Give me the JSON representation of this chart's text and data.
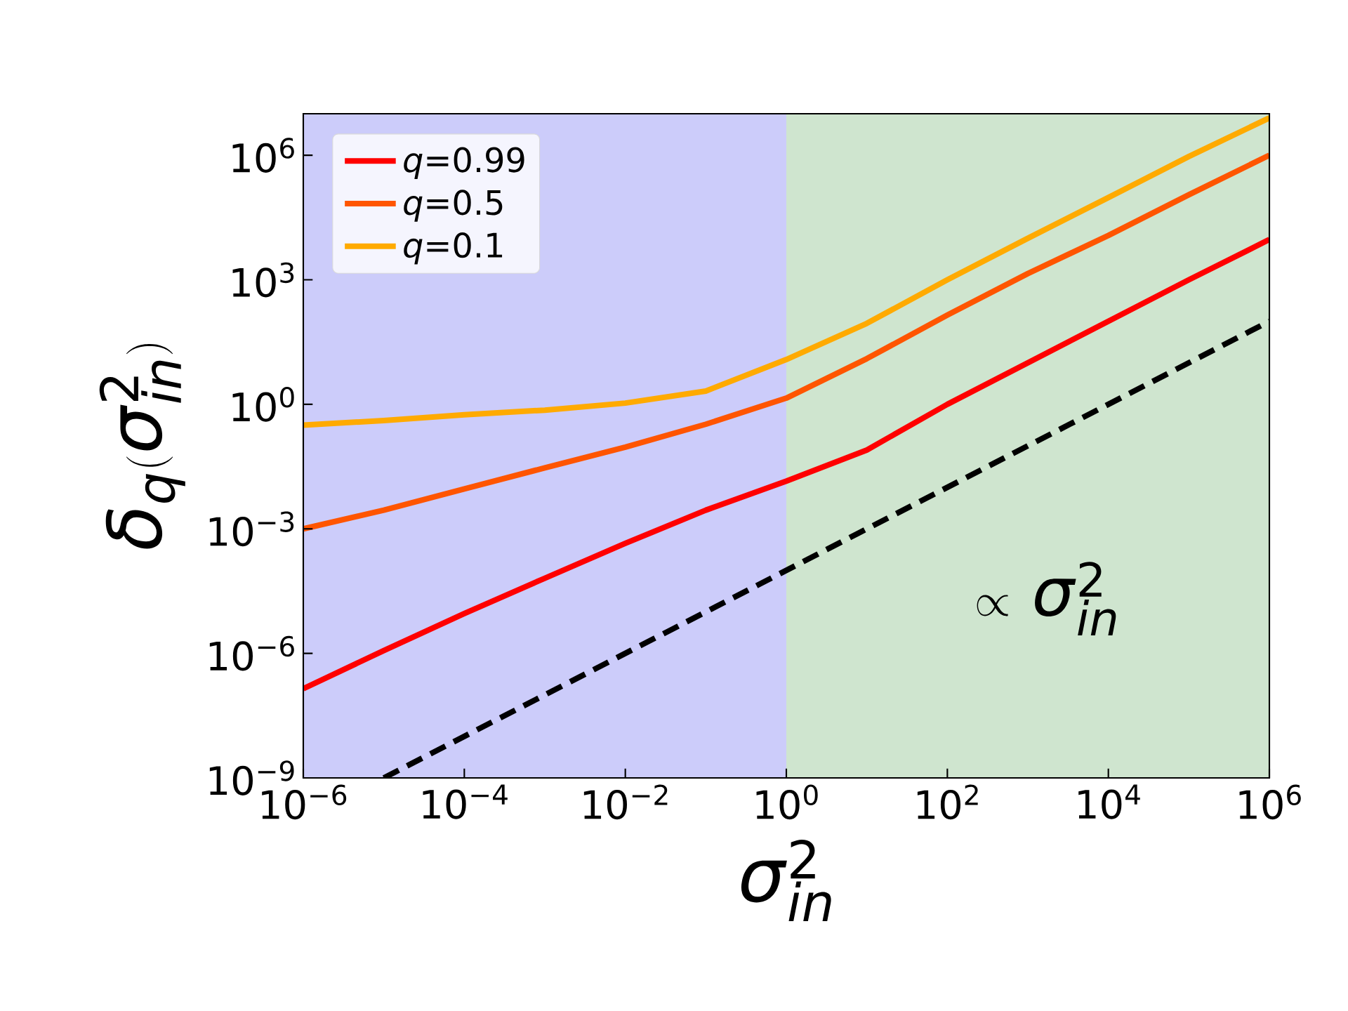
{
  "chart_data": {
    "type": "line",
    "xlabel": "\\sigma_{in}^{2}",
    "ylabel": "\\delta_{q}(\\sigma_{in}^{2})",
    "annotations": [
      "\\propto\\,\\sigma_{in}^{2}"
    ],
    "log": "xy",
    "legend": "top left",
    "xlim": [
      1e-06,
      1000000.0
    ],
    "ylim": [
      1e-09,
      10000000.0
    ],
    "xticks": [
      {
        "value": 1e-06,
        "label": "10$^{−6}$"
      },
      {
        "value": 0.0001,
        "label": "10$^{−4}$"
      },
      {
        "value": 0.01,
        "label": "10$^{−2}$"
      },
      {
        "value": 1,
        "label": "10$^{0}$"
      },
      {
        "value": 100.0,
        "label": "10$^{2}$"
      },
      {
        "value": 10000.0,
        "label": "10$^{4}$"
      },
      {
        "value": 1000000.0,
        "label": "10$^{6}$"
      }
    ],
    "yticks": [
      {
        "value": 1e-09,
        "label": "10$^{−9}$"
      },
      {
        "value": 1e-06,
        "label": "10$^{−6}$"
      },
      {
        "value": 0.001,
        "label": "10$^{−3}$"
      },
      {
        "value": 1,
        "label": "10$^{0}$"
      },
      {
        "value": 1000.0,
        "label": "10$^{3}$"
      },
      {
        "value": 1000000.0,
        "label": "10$^{6}$"
      }
    ],
    "bands": [
      {
        "axis": "x",
        "from": 1e-06,
        "to": 1,
        "color": "#ccccfa"
      },
      {
        "axis": "x",
        "from": 1,
        "to": 1000000.0,
        "color": "#cfe5cf"
      }
    ],
    "series": [
      {
        "name": "*q*=0.99",
        "color": "#ff0000",
        "x": [
          1e-06,
          1e-05,
          0.0001,
          0.001,
          0.01,
          0.1,
          1,
          10,
          100,
          1000,
          10000.0,
          100000.0,
          1000000.0
        ],
        "values": [
          1.41e-07,
          1.17e-06,
          9.12e-06,
          6.46e-05,
          0.000447,
          0.00282,
          0.0141,
          0.0794,
          1,
          10,
          100,
          1000,
          9330
        ]
      },
      {
        "name": "*q*=0.5",
        "color": "#ff5500",
        "x": [
          1e-06,
          1e-05,
          0.0001,
          0.001,
          0.01,
          0.1,
          1,
          10,
          100,
          1000,
          10000.0,
          100000.0,
          1000000.0
        ],
        "values": [
          0.001,
          0.00282,
          0.00912,
          0.0295,
          0.0933,
          0.331,
          1.41,
          12.6,
          141,
          1410,
          11700,
          112000,
          1000000.0
        ]
      },
      {
        "name": "*q*=0.1",
        "color": "#ffaa00",
        "x": [
          1e-06,
          1e-05,
          0.0001,
          0.001,
          0.01,
          0.1,
          1,
          10,
          100,
          1000,
          10000.0,
          100000.0,
          1000000.0
        ],
        "values": [
          0.316,
          0.407,
          0.562,
          0.724,
          1.07,
          2.09,
          12.0,
          89.1,
          1000,
          10000.0,
          95500,
          933000,
          7940000.0
        ]
      },
      {
        "color": "#000000",
        "line_style": "dashed",
        "x": [
          1e-05,
          1000000.0
        ],
        "values": [
          1e-09,
          100.0
        ]
      }
    ]
  }
}
